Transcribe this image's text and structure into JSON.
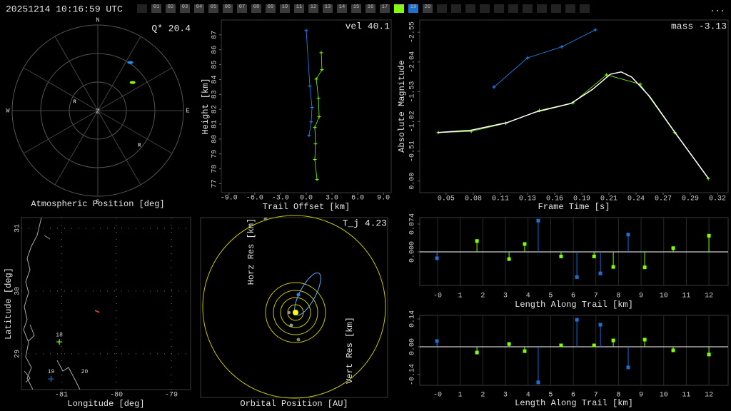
{
  "header": {
    "timestamp": "20251214 10:16:59 UTC",
    "menu": "...",
    "tabs": [
      "01",
      "02",
      "03",
      "04",
      "05",
      "06",
      "07",
      "08",
      "09",
      "10",
      "11",
      "12",
      "13",
      "14",
      "15",
      "16",
      "17",
      "18",
      "19",
      "20"
    ],
    "tab_colors": [
      "#3a3a3a",
      "#3a3a3a",
      "#3a3a3a",
      "#3a3a3a",
      "#3a3a3a",
      "#3a3a3a",
      "#3a3a3a",
      "#3a3a3a",
      "#3a3a3a",
      "#3a3a3a",
      "#3a3a3a",
      "#3a3a3a",
      "#3a3a3a",
      "#3a3a3a",
      "#3a3a3a",
      "#3a3a3a",
      "#3a3a3a",
      "#7fff00",
      "#1e6fd0",
      "#3a3a3a"
    ]
  },
  "chart_data": [
    {
      "type": "polar",
      "title": "Atmospheric Position [deg]",
      "annotation": "Q* 20.4",
      "directions": [
        "N",
        "E",
        "S",
        "W"
      ],
      "center_label": "Z",
      "rlim": [
        0,
        90
      ],
      "series": [
        {
          "color": "#7fff00",
          "r": [
            47
          ],
          "az": [
            51
          ]
        },
        {
          "color": "#1e90ff",
          "r": [
            61
          ],
          "az": [
            34
          ]
        }
      ],
      "markers": [
        {
          "label": "R",
          "r": 26,
          "az": 291
        },
        {
          "label": "R",
          "r": 57,
          "az": 130
        }
      ]
    },
    {
      "type": "line",
      "annotation": "vel 40.1",
      "xlabel": "Trail Offset [km]",
      "ylabel": "Height [km]",
      "xlim": [
        -9.9,
        9.9
      ],
      "ylim": [
        76.4,
        88
      ],
      "xticks": [
        {
          "value": -9,
          "label": "-9.0"
        },
        {
          "value": -6,
          "label": "-6.0"
        },
        {
          "value": -3,
          "label": "-3.0"
        },
        {
          "value": 0,
          "label": "0.0"
        },
        {
          "value": 3,
          "label": "3.0"
        },
        {
          "value": 6,
          "label": "6.0"
        },
        {
          "value": 9,
          "label": "9.0"
        }
      ],
      "yticks": [
        77,
        78,
        79,
        80,
        81,
        82,
        83,
        84,
        85,
        86,
        87
      ],
      "series": [
        {
          "color": "#7fff00",
          "marker": "+",
          "x": [
            1.75,
            1.83,
            1.17,
            1.42,
            1.5,
            1.0,
            1.08,
            1.0,
            1.25
          ],
          "values": [
            85.8,
            84.66,
            84.03,
            82.74,
            81.5,
            80.78,
            79.68,
            78.63,
            77.29
          ]
        },
        {
          "color": "#1e90ff",
          "marker": "+",
          "x": [
            0,
            0.42,
            0.67,
            0.58,
            0.33
          ],
          "values": [
            87.29,
            83.56,
            82.12,
            81.16,
            80.25
          ]
        }
      ]
    },
    {
      "type": "line",
      "annotation": "mass -3.13",
      "xlabel": "Frame Time [s]",
      "ylabel": "Absolute Magnitude",
      "xlim": [
        0.0274,
        0.3305
      ],
      "ylim": [
        0.2,
        -2.76
      ],
      "xticks": [
        {
          "value": 0.0533,
          "label": "0.05"
        },
        {
          "value": 0.08,
          "label": "0.08"
        },
        {
          "value": 0.1067,
          "label": "0.11"
        },
        {
          "value": 0.1333,
          "label": "0.13"
        },
        {
          "value": 0.16,
          "label": "0.16"
        },
        {
          "value": 0.1867,
          "label": "0.19"
        },
        {
          "value": 0.2133,
          "label": "0.21"
        },
        {
          "value": 0.24,
          "label": "0.24"
        },
        {
          "value": 0.2667,
          "label": "0.27"
        },
        {
          "value": 0.2933,
          "label": "0.29"
        },
        {
          "value": 0.32,
          "label": "0.32"
        }
      ],
      "yticks": [
        {
          "value": 0,
          "label": "0.00"
        },
        -0.51,
        -1.02,
        -1.53,
        -2.04,
        -2.55
      ],
      "series": [
        {
          "color": "#1e90ff",
          "marker": "+",
          "x": [
            0.1003,
            0.1333,
            0.167,
            0.2
          ],
          "values": [
            -1.61,
            -2.11,
            -2.3,
            -2.59
          ]
        },
        {
          "color": "#7fff00",
          "marker": "+",
          "x": [
            0.0456,
            0.078,
            0.112,
            0.145,
            0.178,
            0.211,
            0.244,
            0.278,
            0.311
          ],
          "values": [
            -0.83,
            -0.85,
            -0.99,
            -1.21,
            -1.34,
            -1.82,
            -1.66,
            -0.83,
            -0.04
          ]
        },
        {
          "color": "#ffffff",
          "marker": "none",
          "x": [
            0.0449,
            0.0779,
            0.113,
            0.141,
            0.1761,
            0.1972,
            0.2147,
            0.2253,
            0.2358,
            0.2533,
            0.2779,
            0.3109
          ],
          "values": [
            -0.83,
            -0.87,
            -1.0,
            -1.18,
            -1.33,
            -1.57,
            -1.83,
            -1.87,
            -1.78,
            -1.45,
            -0.84,
            -0.05
          ]
        }
      ]
    },
    {
      "type": "map",
      "xlabel": "Longitude [deg]",
      "ylabel": "Latitude [deg]",
      "xlim": [
        -81.73,
        -78.65
      ],
      "ylim": [
        28.43,
        31.17
      ],
      "xticks": [
        -81,
        -80,
        -79
      ],
      "yticks": [
        29,
        30,
        31
      ],
      "stations": [
        {
          "label": "18",
          "lon": -81.04,
          "lat": 29.19,
          "color": "#7fff00"
        },
        {
          "label": "19",
          "lon": -81.19,
          "lat": 28.6,
          "color": "#1e6fd0"
        },
        {
          "label": "20",
          "lon": -80.58,
          "lat": 28.6
        }
      ],
      "trail": {
        "color": "#ff4040",
        "lon": [
          -80.39,
          -80.31
        ],
        "lat": [
          29.69,
          29.66
        ]
      }
    },
    {
      "type": "orbit",
      "title": "Orbital Position [AU]",
      "annotation": "T_j 4.23"
    },
    {
      "type": "stem",
      "xlabel": "Length Along Trail [km]",
      "ylabel": "Horz Res [km]",
      "grid": true,
      "xlim": [
        -0.79,
        12.85
      ],
      "ylim": [
        -0.089,
        0.091
      ],
      "xticks": [
        {
          "value": 0,
          "label": "-0"
        },
        1,
        2,
        3,
        4,
        5,
        6,
        7,
        8,
        9,
        10,
        11,
        12
      ],
      "yticks": [
        {
          "value": 0,
          "label": "0.000"
        },
        0.074
      ],
      "series": [
        {
          "color": "#7fff00",
          "x": [
            1.74,
            3.16,
            3.85,
            5.46,
            6.92,
            7.77,
            9.16,
            10.42,
            12.0
          ],
          "values": [
            0.029,
            -0.019,
            0.021,
            -0.012,
            -0.012,
            -0.04,
            -0.041,
            0.01,
            0.043
          ]
        },
        {
          "color": "#1e6fd0",
          "x": [
            -0.03,
            4.45,
            6.16,
            7.2,
            8.43
          ],
          "values": [
            -0.017,
            0.083,
            -0.067,
            -0.057,
            0.046
          ]
        }
      ]
    },
    {
      "type": "stem",
      "xlabel": "Length Along Trail [km]",
      "ylabel": "Vert Res [km]",
      "grid": true,
      "xlim": [
        -0.79,
        12.85
      ],
      "ylim": [
        -0.194,
        0.158
      ],
      "xticks": [
        {
          "value": 0,
          "label": "-0"
        },
        1,
        2,
        3,
        4,
        5,
        6,
        7,
        8,
        9,
        10,
        11,
        12
      ],
      "yticks": [
        -0.14,
        {
          "value": 0,
          "label": "0.00"
        },
        0.14
      ],
      "series": [
        {
          "color": "#7fff00",
          "x": [
            1.74,
            3.16,
            3.85,
            5.46,
            6.92,
            7.77,
            9.16,
            10.42,
            12.0
          ],
          "values": [
            -0.029,
            0.014,
            -0.022,
            0.007,
            0.007,
            0.032,
            0.036,
            -0.018,
            -0.039
          ]
        },
        {
          "color": "#1e6fd0",
          "x": [
            -0.03,
            4.45,
            6.16,
            7.2,
            8.43
          ],
          "values": [
            0.029,
            -0.179,
            0.136,
            0.111,
            -0.104
          ]
        }
      ]
    }
  ]
}
